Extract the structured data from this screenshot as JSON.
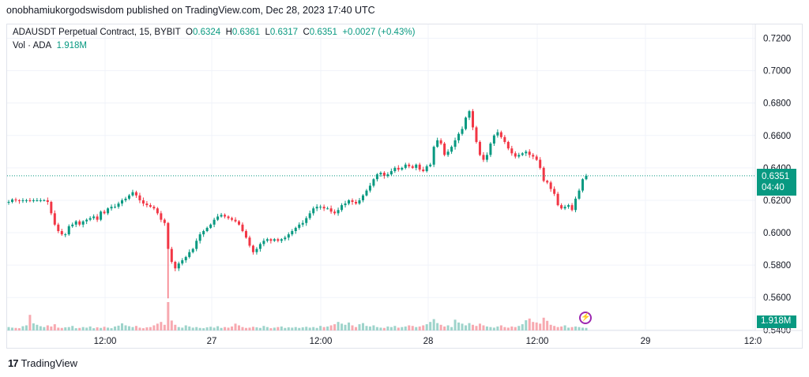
{
  "header": {
    "published": "onobhamiukorgodswisdom published on TradingView.com, Dec 28, 2023 17:40 UTC"
  },
  "legend": {
    "symbol": "ADAUSDT Perpetual Contract, 15, BYBIT",
    "o_label": "O",
    "o_value": "0.6324",
    "h_label": "H",
    "h_value": "0.6361",
    "l_label": "L",
    "l_value": "0.6317",
    "c_label": "C",
    "c_value": "0.6351",
    "change": "+0.0027 (+0.43%)",
    "vol_label": "Vol · ADA",
    "vol_value": "1.918M"
  },
  "price_label": {
    "price": "0.6351",
    "countdown": "04:40"
  },
  "vol_label": "1.918M",
  "footer": {
    "brand": "TradingView"
  },
  "colors": {
    "up": "#089981",
    "down": "#f23645",
    "up_vol": "#9ed4cb",
    "down_vol": "#f7a9b0",
    "grid": "#f0f3fa"
  },
  "chart_data": {
    "type": "candlestick",
    "y_ticks": [
      "0.7200",
      "0.7000",
      "0.6800",
      "0.6600",
      "0.6400",
      "0.6200",
      "0.6000",
      "0.5800",
      "0.5600",
      "0.5400"
    ],
    "x_ticks": [
      "12:00",
      "27",
      "12:00",
      "28",
      "12:00",
      "29",
      "12:0"
    ],
    "ylim": [
      0.528,
      0.7285
    ],
    "last_price": 0.6351,
    "price_path": [
      [
        0.619,
        0.6205,
        0.62,
        0.6195,
        0.62,
        0.62,
        0.6195,
        0.62,
        0.62,
        0.62
      ],
      [
        0.62,
        0.619,
        0.612,
        0.605,
        0.601,
        0.599,
        0.599,
        0.604,
        0.605,
        0.607
      ],
      [
        0.605,
        0.607,
        0.608,
        0.609,
        0.61,
        0.608,
        0.613,
        0.612,
        0.615,
        0.616
      ],
      [
        0.616,
        0.618,
        0.62,
        0.621,
        0.623,
        0.625,
        0.623,
        0.62,
        0.618,
        0.617
      ],
      [
        0.616,
        0.615,
        0.612,
        0.608,
        0.606,
        0.59,
        0.582,
        0.578,
        0.581,
        0.583
      ],
      [
        0.585,
        0.588,
        0.59,
        0.595,
        0.599,
        0.601,
        0.603,
        0.605,
        0.608,
        0.61
      ],
      [
        0.611,
        0.61,
        0.609,
        0.608,
        0.607,
        0.605,
        0.601,
        0.597,
        0.592,
        0.588
      ],
      [
        0.59,
        0.593,
        0.595,
        0.596,
        0.595,
        0.596,
        0.595,
        0.596,
        0.597,
        0.599
      ],
      [
        0.601,
        0.603,
        0.605,
        0.606,
        0.609,
        0.612,
        0.615,
        0.616,
        0.616,
        0.615
      ],
      [
        0.615,
        0.613,
        0.612,
        0.614,
        0.617,
        0.618,
        0.62,
        0.619,
        0.618,
        0.62
      ],
      [
        0.623,
        0.626,
        0.629,
        0.633,
        0.636,
        0.637,
        0.635,
        0.636,
        0.638,
        0.64
      ],
      [
        0.639,
        0.64,
        0.642,
        0.641,
        0.64,
        0.642,
        0.639,
        0.638,
        0.641,
        0.642
      ],
      [
        0.653,
        0.657,
        0.655,
        0.648,
        0.65,
        0.653,
        0.657,
        0.661,
        0.664,
        0.671
      ],
      [
        0.675,
        0.665,
        0.656,
        0.648,
        0.645,
        0.648,
        0.655,
        0.66,
        0.662,
        0.659
      ],
      [
        0.656,
        0.652,
        0.649,
        0.647,
        0.648,
        0.649,
        0.65,
        0.648,
        0.647,
        0.645
      ],
      [
        0.64,
        0.632,
        0.631,
        0.627,
        0.624,
        0.617,
        0.615,
        0.616,
        0.617,
        0.614
      ],
      [
        0.621,
        0.626,
        0.633,
        0.6351
      ]
    ],
    "volume_relative": [
      0.12,
      0.1,
      0.09,
      0.08,
      0.15,
      0.18,
      0.55,
      0.25,
      0.2,
      0.15,
      0.12,
      0.18,
      0.14,
      0.22,
      0.1,
      0.09,
      0.11,
      0.12,
      0.16,
      0.08,
      0.09,
      0.12,
      0.1,
      0.14,
      0.08,
      0.11,
      0.09,
      0.13,
      0.1,
      0.08,
      0.14,
      0.17,
      0.25,
      0.18,
      0.15,
      0.12,
      0.16,
      0.1,
      0.08,
      0.11,
      0.12,
      0.18,
      0.24,
      0.3,
      0.2,
      1.0,
      0.35,
      0.2,
      0.12,
      0.1,
      0.18,
      0.14,
      0.1,
      0.12,
      0.09,
      0.08,
      0.11,
      0.13,
      0.1,
      0.15,
      0.09,
      0.12,
      0.1,
      0.14,
      0.24,
      0.18,
      0.12,
      0.09,
      0.1,
      0.13,
      0.11,
      0.09,
      0.16,
      0.12,
      0.08,
      0.1,
      0.12,
      0.14,
      0.09,
      0.11,
      0.1,
      0.12,
      0.09,
      0.11,
      0.13,
      0.1,
      0.12,
      0.09,
      0.16,
      0.12,
      0.14,
      0.18,
      0.22,
      0.3,
      0.24,
      0.2,
      0.28,
      0.18,
      0.12,
      0.22,
      0.26,
      0.16,
      0.14,
      0.18,
      0.12,
      0.1,
      0.09,
      0.14,
      0.12,
      0.16,
      0.1,
      0.12,
      0.14,
      0.18,
      0.16,
      0.12,
      0.14,
      0.18,
      0.22,
      0.3,
      0.4,
      0.26,
      0.2,
      0.14,
      0.18,
      0.12,
      0.38,
      0.28,
      0.24,
      0.18,
      0.26,
      0.2,
      0.16,
      0.24,
      0.18,
      0.14,
      0.12,
      0.1,
      0.14,
      0.18,
      0.12,
      0.1,
      0.14,
      0.12,
      0.16,
      0.22,
      0.36,
      0.42,
      0.3,
      0.28,
      0.24,
      0.45,
      0.34,
      0.2,
      0.16,
      0.12,
      0.14,
      0.18,
      0.1,
      0.12,
      0.14
    ]
  }
}
